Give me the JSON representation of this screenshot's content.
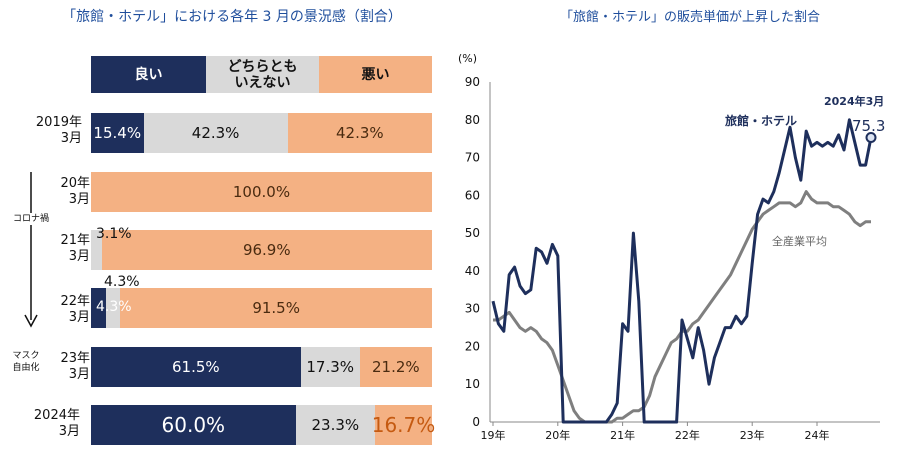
{
  "left": {
    "title": "「旅館・ホテル」における各年 3 月の景況感（割合）",
    "legend": {
      "good": "良い",
      "neutral": "どちらとも\nいえない",
      "bad": "悪い"
    },
    "side_note_covid": "コロナ禍",
    "side_note_normal": "マスク\n自由化",
    "rows": [
      {
        "label": "2019年\n3月",
        "good": 15.4,
        "neutral": 42.3,
        "bad": 42.3,
        "good_text": "15.4%",
        "neutral_text": "42.3%",
        "bad_text": "42.3%"
      },
      {
        "label": "20年\n3月",
        "good": 0,
        "neutral": 0,
        "bad": 100.0,
        "good_text": "",
        "neutral_text": "",
        "bad_text": "100.0%"
      },
      {
        "label": "21年\n3月",
        "good": 0,
        "neutral": 3.1,
        "bad": 96.9,
        "good_text": "",
        "neutral_text": "3.1%",
        "bad_text": "96.9%"
      },
      {
        "label": "22年\n3月",
        "good": 4.3,
        "neutral": 4.3,
        "bad": 91.5,
        "good_text": "4.3%",
        "neutral_text": "4.3%",
        "bad_text": "91.5%"
      },
      {
        "label": "23年\n3月",
        "good": 61.5,
        "neutral": 17.3,
        "bad": 21.2,
        "good_text": "61.5%",
        "neutral_text": "17.3%",
        "bad_text": "21.2%"
      },
      {
        "label": "2024年\n3月",
        "good": 60.0,
        "neutral": 23.3,
        "bad": 16.7,
        "good_text": "60.0%",
        "neutral_text": "23.3%",
        "bad_text": "16.7%"
      }
    ]
  },
  "right": {
    "title": "「旅館・ホテル」の販売単価が上昇した割合",
    "unit": "(%)",
    "annotation_date": "2024年3月",
    "annotation_value": "75.3"
  },
  "chart_data": {
    "type": "line",
    "title": "「旅館・ホテル」の販売単価が上昇した割合",
    "ylabel": "(%)",
    "ylim": [
      0,
      90
    ],
    "yticks": [
      0,
      10,
      20,
      30,
      40,
      50,
      60,
      70,
      80,
      90
    ],
    "xticks": [
      "19年",
      "20年",
      "21年",
      "22年",
      "23年",
      "24年"
    ],
    "x_start": "2019-01",
    "x_end": "2024-03",
    "colors": {
      "hotel": "#1e2f5c",
      "all": "#7f7f7f"
    },
    "series": [
      {
        "name": "旅館・ホテル",
        "values": [
          32,
          26,
          24,
          39,
          41,
          36,
          34,
          35,
          46,
          45,
          42,
          47,
          44,
          0,
          0,
          0,
          0,
          0,
          0,
          0,
          0,
          0,
          2,
          5,
          26,
          24,
          50,
          32,
          0,
          0,
          0,
          0,
          0,
          0,
          0,
          27,
          22,
          17,
          25,
          19,
          10,
          17,
          21,
          25,
          25,
          28,
          26,
          28,
          42,
          55,
          59,
          58,
          61,
          66,
          72,
          78,
          70,
          64,
          77,
          73,
          74,
          73,
          74,
          73,
          76,
          72,
          80,
          74,
          68,
          68,
          75.3
        ]
      },
      {
        "name": "全産業平均",
        "values": [
          27,
          27,
          28,
          29,
          27,
          25,
          24,
          25,
          24,
          22,
          21,
          19,
          15,
          11,
          7,
          3,
          1,
          0,
          0,
          0,
          0,
          0,
          0,
          1,
          1,
          2,
          3,
          3,
          4,
          7,
          12,
          15,
          18,
          21,
          22,
          24,
          24,
          26,
          27,
          29,
          31,
          33,
          35,
          37,
          39,
          42,
          45,
          48,
          51,
          53,
          55,
          56,
          57,
          58,
          58,
          58,
          57,
          58,
          61,
          59,
          58,
          58,
          58,
          57,
          57,
          56,
          55,
          53,
          52,
          53,
          53
        ]
      }
    ]
  }
}
